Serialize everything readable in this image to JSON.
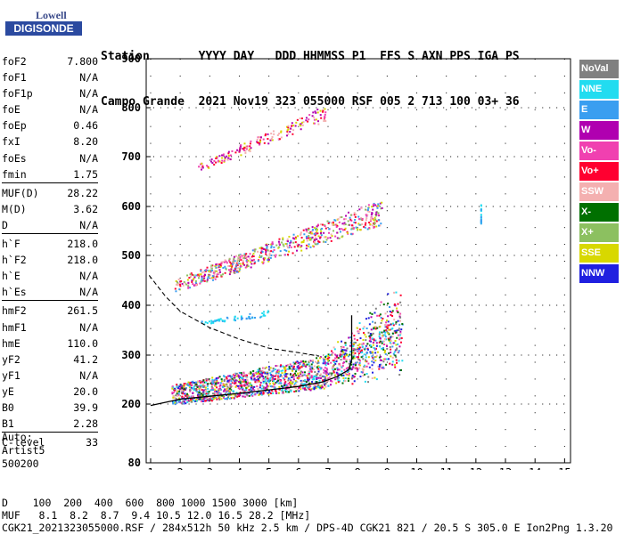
{
  "logo": {
    "line1": "Lowell",
    "line2": "DIGISONDE"
  },
  "header": {
    "line1": "Station       YYYY DAY   DDD HHMMSS P1  FFS S AXN PPS IGA PS",
    "line2": "Campo Grande  2021 Nov19 323 055000 RSF 005 2 713 100 03+ 36"
  },
  "params": [
    {
      "name": "foF2",
      "value": "7.800"
    },
    {
      "name": "foF1",
      "value": "N/A"
    },
    {
      "name": "foF1p",
      "value": "N/A"
    },
    {
      "name": "foE",
      "value": "N/A"
    },
    {
      "name": "foEp",
      "value": "0.46"
    },
    {
      "name": "fxI",
      "value": "8.20"
    },
    {
      "name": "foEs",
      "value": "N/A"
    },
    {
      "name": "fmin",
      "value": "1.75"
    },
    {
      "sep": true
    },
    {
      "name": "MUF(D)",
      "value": "28.22"
    },
    {
      "name": "M(D)",
      "value": "3.62"
    },
    {
      "name": "D",
      "value": "N/A"
    },
    {
      "sep": true
    },
    {
      "name": "h`F",
      "value": "218.0"
    },
    {
      "name": "h`F2",
      "value": "218.0"
    },
    {
      "name": "h`E",
      "value": "N/A"
    },
    {
      "name": "h`Es",
      "value": "N/A"
    },
    {
      "sep": true
    },
    {
      "name": "hmF2",
      "value": "261.5"
    },
    {
      "name": "hmF1",
      "value": "N/A"
    },
    {
      "name": "hmE",
      "value": "110.0"
    },
    {
      "name": "yF2",
      "value": "41.2"
    },
    {
      "name": "yF1",
      "value": "N/A"
    },
    {
      "name": "yE",
      "value": "20.0"
    },
    {
      "name": "B0",
      "value": "39.9"
    },
    {
      "name": "B1",
      "value": "2.28"
    },
    {
      "sep": true
    },
    {
      "name": "C-level",
      "value": "33"
    }
  ],
  "auto": {
    "l1": "Auto:",
    "l2": "Artist5",
    "l3": "500200"
  },
  "legend": [
    {
      "label": "NoVal",
      "color": "#808080",
      "text": "#ffffff"
    },
    {
      "label": "NNE",
      "color": "#22dcf0",
      "text": "#ffffff"
    },
    {
      "label": "E",
      "color": "#3a9ef0",
      "text": "#ffffff"
    },
    {
      "label": "W",
      "color": "#b000b0",
      "text": "#ffffff"
    },
    {
      "label": "Vo-",
      "color": "#f040b0",
      "text": "#ffffff"
    },
    {
      "label": "Vo+",
      "color": "#ff0030",
      "text": "#ffffff"
    },
    {
      "label": "SSW",
      "color": "#f4b0b0",
      "text": "#ffffff"
    },
    {
      "label": "X-",
      "color": "#007000",
      "text": "#ffffff"
    },
    {
      "label": "X+",
      "color": "#8cc060",
      "text": "#ffffff"
    },
    {
      "label": "SSE",
      "color": "#d8d800",
      "text": "#ffffff"
    },
    {
      "label": "NNW",
      "color": "#2020e0",
      "text": "#ffffff"
    }
  ],
  "bottom": {
    "d_line": "D    100  200  400  600  800 1000 1500 3000 [km]",
    "muf_line": "MUF   8.1  8.2  8.7  9.4 10.5 12.0 16.5 28.2 [MHz]",
    "info": "CGK21_2021323055000.RSF / 284x512h 50 kHz 2.5 km / DPS-4D CGK21 821 / 20.5 S 305.0 E Ion2Png 1.3.20"
  },
  "chart_data": {
    "type": "scatter",
    "title": "",
    "xlabel": "",
    "ylabel": "",
    "xlim": [
      0.85,
      15.2
    ],
    "ylim": [
      80,
      900
    ],
    "x_ticks": [
      1,
      2,
      3,
      4,
      5,
      6,
      7,
      8,
      9,
      10,
      11,
      12,
      13,
      14,
      15
    ],
    "y_ticks": [
      80,
      200,
      300,
      400,
      500,
      600,
      700,
      800,
      900
    ],
    "echo_regions": [
      {
        "name": "O-trace (1st hop)",
        "x_range": [
          1.7,
          9.5
        ],
        "h_start": 220,
        "h_end": 290,
        "rise_at": 6.8,
        "rise_to": 420
      },
      {
        "name": "2nd hop",
        "x_range": [
          1.8,
          8.8
        ],
        "h_start": 440,
        "h_end": 590
      },
      {
        "name": "3rd hop",
        "x_range": [
          2.6,
          6.9
        ],
        "h_start": 678,
        "h_end": 790
      },
      {
        "name": "weak echo",
        "x_range": [
          2.7,
          5.0
        ],
        "h_start": 366,
        "h_end": 385
      },
      {
        "name": "spike",
        "x": 12.15,
        "h_range": [
          565,
          605
        ]
      }
    ],
    "profile_solid": [
      [
        1.0,
        197
      ],
      [
        2.0,
        210
      ],
      [
        3.0,
        216
      ],
      [
        4.0,
        222
      ],
      [
        5.0,
        229
      ],
      [
        6.0,
        236
      ],
      [
        6.8,
        245
      ],
      [
        7.3,
        256
      ],
      [
        7.7,
        270
      ],
      [
        7.8,
        290
      ],
      [
        7.8,
        330
      ],
      [
        7.8,
        380
      ]
    ],
    "profile_dashed": [
      [
        0.95,
        460
      ],
      [
        1.5,
        418
      ],
      [
        2.0,
        388
      ],
      [
        3.0,
        355
      ],
      [
        4.0,
        332
      ],
      [
        5.0,
        314
      ],
      [
        6.0,
        305
      ],
      [
        6.7,
        298
      ]
    ]
  }
}
